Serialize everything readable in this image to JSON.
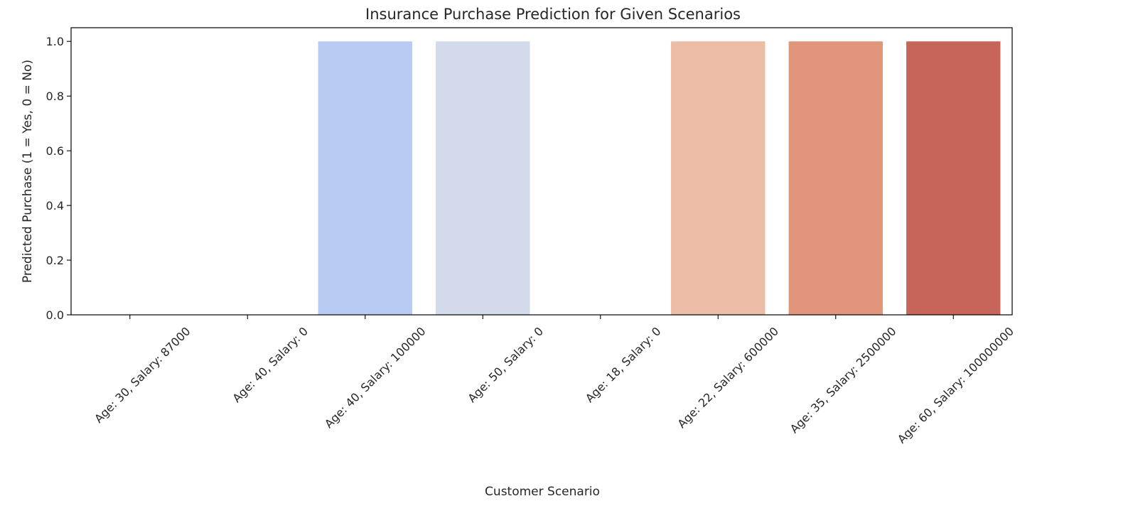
{
  "chart_data": {
    "type": "bar",
    "title": "Insurance Purchase Prediction for Given Scenarios",
    "xlabel": "Customer Scenario",
    "ylabel": "Predicted Purchase (1 = Yes, 0 = No)",
    "categories": [
      "Age: 30, Salary: 87000",
      "Age: 40, Salary: 0",
      "Age: 40, Salary: 100000",
      "Age: 50, Salary: 0",
      "Age: 18, Salary: 0",
      "Age: 22, Salary: 600000",
      "Age: 35, Salary: 2500000",
      "Age: 60, Salary: 100000000"
    ],
    "values": [
      0,
      0,
      1,
      1,
      0,
      1,
      1,
      1
    ],
    "colors": [
      "#3b4cc0",
      "#7b9ff9",
      "#b7cbf3",
      "#d3dbea",
      "#f2cbb7",
      "#ecbca7",
      "#e0957c",
      "#c6665a"
    ],
    "ylim": [
      0,
      1.05
    ],
    "yticks": [
      0.0,
      0.2,
      0.4,
      0.6,
      0.8,
      1.0
    ],
    "ytick_labels": [
      "0.0",
      "0.2",
      "0.4",
      "0.6",
      "0.8",
      "1.0"
    ],
    "grid": false,
    "legend": "none"
  }
}
